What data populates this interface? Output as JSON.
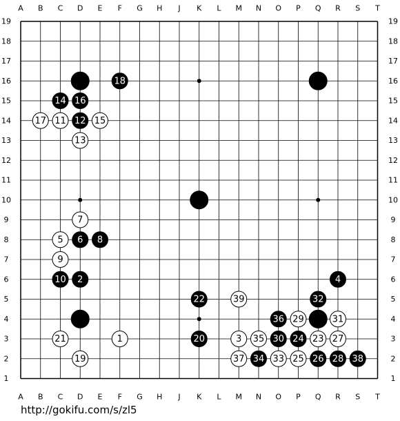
{
  "board": {
    "columns": [
      "A",
      "B",
      "C",
      "D",
      "E",
      "F",
      "G",
      "H",
      "J",
      "K",
      "L",
      "M",
      "N",
      "O",
      "P",
      "Q",
      "R",
      "S",
      "T"
    ],
    "rows": [
      19,
      18,
      17,
      16,
      15,
      14,
      13,
      12,
      11,
      10,
      9,
      8,
      7,
      6,
      5,
      4,
      3,
      2,
      1
    ],
    "stars": [
      {
        "col": "D",
        "row": 4
      },
      {
        "col": "K",
        "row": 4
      },
      {
        "col": "Q",
        "row": 4
      },
      {
        "col": "D",
        "row": 10
      },
      {
        "col": "K",
        "row": 10
      },
      {
        "col": "Q",
        "row": 10
      },
      {
        "col": "D",
        "row": 16
      },
      {
        "col": "K",
        "row": 16
      },
      {
        "col": "Q",
        "row": 16
      }
    ],
    "stones": [
      {
        "col": "D",
        "row": 16,
        "color": "black"
      },
      {
        "col": "Q",
        "row": 16,
        "color": "black"
      },
      {
        "col": "K",
        "row": 10,
        "color": "black"
      },
      {
        "col": "D",
        "row": 4,
        "color": "black"
      },
      {
        "col": "Q",
        "row": 4,
        "color": "black"
      },
      {
        "col": "F",
        "row": 16,
        "color": "black",
        "label": "18"
      },
      {
        "col": "C",
        "row": 15,
        "color": "black",
        "label": "14"
      },
      {
        "col": "D",
        "row": 15,
        "color": "black",
        "label": "16"
      },
      {
        "col": "D",
        "row": 14,
        "color": "black",
        "label": "12"
      },
      {
        "col": "D",
        "row": 8,
        "color": "black",
        "label": "6"
      },
      {
        "col": "E",
        "row": 8,
        "color": "black",
        "label": "8"
      },
      {
        "col": "C",
        "row": 6,
        "color": "black",
        "label": "10"
      },
      {
        "col": "D",
        "row": 6,
        "color": "black",
        "label": "2"
      },
      {
        "col": "R",
        "row": 6,
        "color": "black",
        "label": "4"
      },
      {
        "col": "K",
        "row": 5,
        "color": "black",
        "label": "22"
      },
      {
        "col": "Q",
        "row": 5,
        "color": "black",
        "label": "32"
      },
      {
        "col": "O",
        "row": 4,
        "color": "black",
        "label": "36"
      },
      {
        "col": "K",
        "row": 3,
        "color": "black",
        "label": "20"
      },
      {
        "col": "O",
        "row": 3,
        "color": "black",
        "label": "30"
      },
      {
        "col": "P",
        "row": 3,
        "color": "black",
        "label": "24"
      },
      {
        "col": "N",
        "row": 2,
        "color": "black",
        "label": "34"
      },
      {
        "col": "Q",
        "row": 2,
        "color": "black",
        "label": "26"
      },
      {
        "col": "R",
        "row": 2,
        "color": "black",
        "label": "28"
      },
      {
        "col": "S",
        "row": 2,
        "color": "black",
        "label": "38"
      },
      {
        "col": "B",
        "row": 14,
        "color": "white",
        "label": "17"
      },
      {
        "col": "C",
        "row": 14,
        "color": "white",
        "label": "11"
      },
      {
        "col": "E",
        "row": 14,
        "color": "white",
        "label": "15"
      },
      {
        "col": "D",
        "row": 13,
        "color": "white",
        "label": "13"
      },
      {
        "col": "D",
        "row": 9,
        "color": "white",
        "label": "7"
      },
      {
        "col": "C",
        "row": 8,
        "color": "white",
        "label": "5"
      },
      {
        "col": "C",
        "row": 7,
        "color": "white",
        "label": "9"
      },
      {
        "col": "M",
        "row": 5,
        "color": "white",
        "label": "39"
      },
      {
        "col": "P",
        "row": 4,
        "color": "white",
        "label": "29"
      },
      {
        "col": "R",
        "row": 4,
        "color": "white",
        "label": "31"
      },
      {
        "col": "C",
        "row": 3,
        "color": "white",
        "label": "21"
      },
      {
        "col": "F",
        "row": 3,
        "color": "white",
        "label": "1"
      },
      {
        "col": "M",
        "row": 3,
        "color": "white",
        "label": "3"
      },
      {
        "col": "N",
        "row": 3,
        "color": "white",
        "label": "35"
      },
      {
        "col": "Q",
        "row": 3,
        "color": "white",
        "label": "23"
      },
      {
        "col": "R",
        "row": 3,
        "color": "white",
        "label": "27"
      },
      {
        "col": "D",
        "row": 2,
        "color": "white",
        "label": "19"
      },
      {
        "col": "M",
        "row": 2,
        "color": "white",
        "label": "37"
      },
      {
        "col": "O",
        "row": 2,
        "color": "white",
        "label": "33"
      },
      {
        "col": "P",
        "row": 2,
        "color": "white",
        "label": "25"
      }
    ]
  },
  "footer": "http://gokifu.com/s/zl5"
}
